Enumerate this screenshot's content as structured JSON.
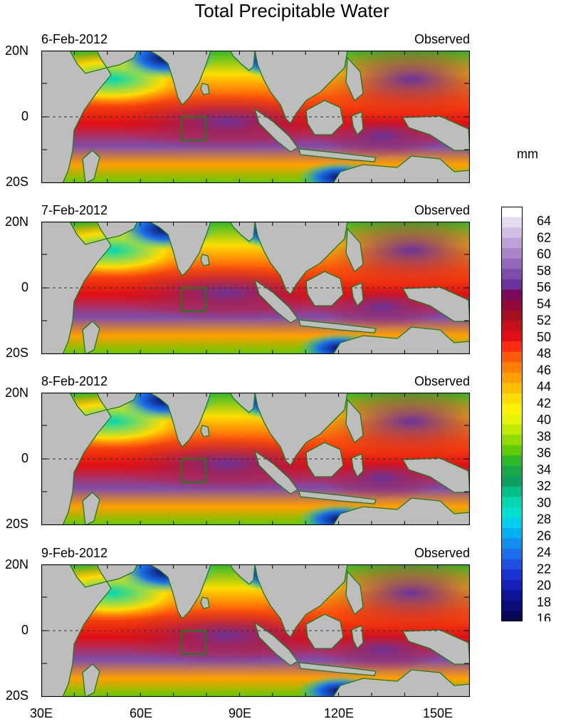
{
  "title": "Total Precipitable Water",
  "units_label": "mm",
  "observed_label": "Observed",
  "panels": [
    {
      "date": "6-Feb-2012",
      "label": "Observed"
    },
    {
      "date": "7-Feb-2012",
      "label": "Observed"
    },
    {
      "date": "8-Feb-2012",
      "label": "Observed"
    },
    {
      "date": "9-Feb-2012",
      "label": "Observed"
    }
  ],
  "lat_ticks": [
    "20N",
    "0",
    "20S"
  ],
  "lon_ticks": [
    "30E",
    "60E",
    "90E",
    "120E",
    "150E"
  ],
  "colorbar": {
    "labels": [
      "64",
      "62",
      "60",
      "58",
      "56",
      "54",
      "52",
      "50",
      "48",
      "46",
      "44",
      "42",
      "40",
      "38",
      "36",
      "34",
      "32",
      "30",
      "28",
      "26",
      "24",
      "22",
      "20",
      "18",
      "16"
    ],
    "colors": [
      "#ffffff",
      "#e6dcef",
      "#d2bfe3",
      "#bea2d6",
      "#a985c8",
      "#9468ba",
      "#7f4cab",
      "#6a339b",
      "#7a0a5a",
      "#8f0a3a",
      "#a50f22",
      "#c4101a",
      "#e00f14",
      "#ff2a0f",
      "#ff5a0a",
      "#ff7f00",
      "#ff9f00",
      "#ffbf00",
      "#ffdc00",
      "#fff200",
      "#e8f500",
      "#c2ea00",
      "#94dc00",
      "#5fcc00",
      "#2fb82a",
      "#18a84a",
      "#0f9e62",
      "#00c08a",
      "#00d8b0",
      "#00e0d0",
      "#00cfee",
      "#00b0f0",
      "#108fee",
      "#1c6eea",
      "#1f4fe0",
      "#1a33d0",
      "#1420b8",
      "#0e1498",
      "#0a0c78",
      "#070756"
    ]
  }
}
